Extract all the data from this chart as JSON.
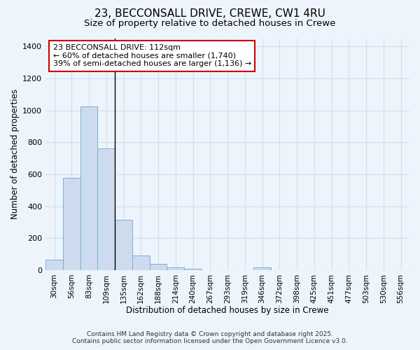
{
  "title1": "23, BECCONSALL DRIVE, CREWE, CW1 4RU",
  "title2": "Size of property relative to detached houses in Crewe",
  "xlabel": "Distribution of detached houses by size in Crewe",
  "ylabel": "Number of detached properties",
  "categories": [
    "30sqm",
    "56sqm",
    "83sqm",
    "109sqm",
    "135sqm",
    "162sqm",
    "188sqm",
    "214sqm",
    "240sqm",
    "267sqm",
    "293sqm",
    "319sqm",
    "346sqm",
    "372sqm",
    "398sqm",
    "425sqm",
    "451sqm",
    "477sqm",
    "503sqm",
    "530sqm",
    "556sqm"
  ],
  "values": [
    65,
    580,
    1025,
    760,
    315,
    90,
    40,
    18,
    10,
    0,
    0,
    0,
    15,
    0,
    0,
    0,
    0,
    0,
    0,
    0,
    0
  ],
  "bar_color": "#ccdcee",
  "bar_edge_color": "#7bafd4",
  "vline_color": "black",
  "vline_idx": 3.5,
  "annotation_title": "23 BECCONSALL DRIVE: 112sqm",
  "annotation_line1": "← 60% of detached houses are smaller (1,740)",
  "annotation_line2": "39% of semi-detached houses are larger (1,136) →",
  "annotation_box_color": "white",
  "annotation_box_edge_color": "#cc0000",
  "ylim": [
    0,
    1450
  ],
  "bg_color": "#eef4fb",
  "grid_color": "#d0dff0",
  "footer1": "Contains HM Land Registry data © Crown copyright and database right 2025.",
  "footer2": "Contains public sector information licensed under the Open Government Licence v3.0."
}
